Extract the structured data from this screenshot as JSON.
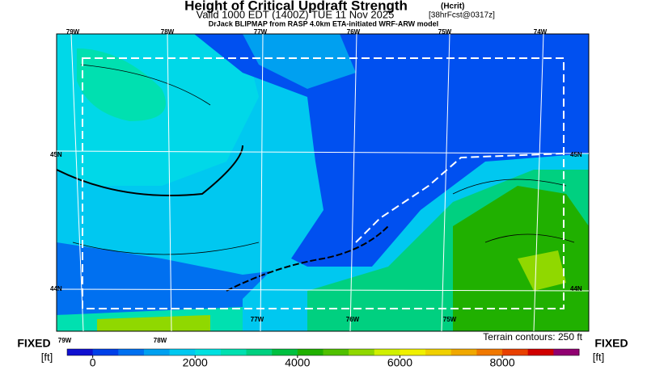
{
  "header": {
    "title": "Height of Critical Updraft Strength",
    "title_tag": "(Hcrit)",
    "subtitle": "Valid 1000 EDT (1400Z) TUE 11 Nov 2025",
    "forecast": "[38hrFcst@0317z]",
    "model": "DrJack BLIPMAP from RASP 4.0km ETA-initiated WRF-ARW model"
  },
  "map": {
    "top_lon_labels": [
      "79W",
      "78W",
      "77W",
      "76W",
      "75W",
      "74W"
    ],
    "bottom_lon_labels": [
      "79W",
      "78W",
      "77W",
      "76W",
      "75W"
    ],
    "left_lat_labels": [
      "45N",
      "44N"
    ],
    "right_lat_labels": [
      "45N",
      "44N"
    ],
    "terrain_note": "Terrain contours: 250 ft"
  },
  "colorbar": {
    "left_label": "FIXED",
    "left_unit": "[ft]",
    "right_label": "FIXED",
    "right_unit": "[ft]",
    "range": [
      -500,
      9500
    ],
    "ticks": [
      0,
      2000,
      4000,
      6000,
      8000
    ],
    "colors": [
      "#1010d0",
      "#0040e8",
      "#0070f0",
      "#00a0f0",
      "#00c8f0",
      "#00e0e0",
      "#00e0b0",
      "#00d080",
      "#00c040",
      "#20b000",
      "#50c000",
      "#90d800",
      "#d0f000",
      "#f0f000",
      "#f0d000",
      "#f0a800",
      "#f07800",
      "#e84000",
      "#d00000",
      "#900070"
    ]
  }
}
